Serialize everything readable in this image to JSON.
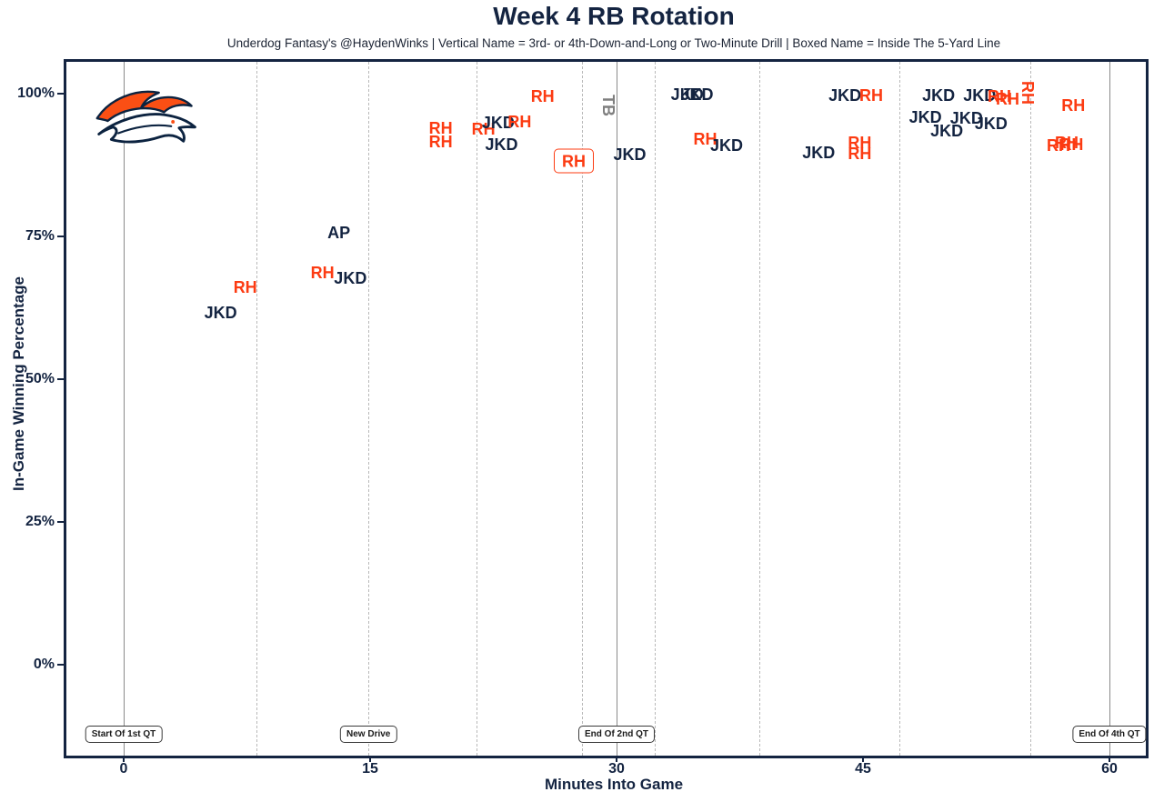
{
  "title": "Week 4 RB Rotation",
  "subtitle": "Underdog Fantasy's @HaydenWinks | Vertical Name = 3rd- or 4th-Down-and-Long or Two-Minute Drill | Boxed Name = Inside The 5-Yard Line",
  "colors": {
    "navy": "#142441",
    "orange": "#fc3b12",
    "gray": "#7f7f7f",
    "dashed_gridline": "#b9b9b9",
    "quarter_line": "#8a8a8a"
  },
  "logo": "denver-broncos",
  "chart_data": {
    "type": "scatter",
    "title": "Week 4 RB Rotation",
    "xlabel": "Minutes Into Game",
    "ylabel": "In-Game Winning Percentage",
    "xlim": [
      -3.5,
      62.4
    ],
    "ylim": [
      -15.9,
      105.6
    ],
    "grid": "vertical dashed lines at each new drive; solid vertical lines at quarter boundaries",
    "legend_position": "none",
    "x_ticks": [
      {
        "value": 0,
        "label": "0"
      },
      {
        "value": 15,
        "label": "15"
      },
      {
        "value": 30,
        "label": "30"
      },
      {
        "value": 45,
        "label": "45"
      },
      {
        "value": 60,
        "label": "60"
      }
    ],
    "y_ticks": [
      {
        "value": 0,
        "label": "0%"
      },
      {
        "value": 25,
        "label": "25%"
      },
      {
        "value": 50,
        "label": "50%"
      },
      {
        "value": 75,
        "label": "75%"
      },
      {
        "value": 100,
        "label": "100%"
      }
    ],
    "quarter_lines_min": [
      0,
      30,
      60
    ],
    "drive_lines_min": [
      8.1,
      14.9,
      21.5,
      27.9,
      32.3,
      38.7,
      47.2,
      55.2
    ],
    "annotations": [
      {
        "min": 0,
        "label": "Start Of 1st QT"
      },
      {
        "min": 14.9,
        "label": "New Drive"
      },
      {
        "min": 30,
        "label": "End Of 2nd QT"
      },
      {
        "min": 60,
        "label": "End Of 4th QT"
      }
    ],
    "player_colors": {
      "RH": "orange",
      "JKD": "navy",
      "AP": "navy",
      "TB": "gray"
    },
    "points": [
      {
        "player": "JKD",
        "min": 5.9,
        "win_pct": 61.6
      },
      {
        "player": "RH",
        "min": 7.4,
        "win_pct": 66.1
      },
      {
        "player": "RH",
        "min": 12.1,
        "win_pct": 68.6
      },
      {
        "player": "AP",
        "min": 13.1,
        "win_pct": 75.6
      },
      {
        "player": "JKD",
        "min": 13.8,
        "win_pct": 67.7
      },
      {
        "player": "RH",
        "min": 19.3,
        "win_pct": 94.0
      },
      {
        "player": "RH",
        "min": 19.3,
        "win_pct": 91.5
      },
      {
        "player": "RH",
        "min": 21.9,
        "win_pct": 93.8
      },
      {
        "player": "JKD",
        "min": 22.8,
        "win_pct": 94.9
      },
      {
        "player": "RH",
        "min": 24.1,
        "win_pct": 95.0
      },
      {
        "player": "JKD",
        "min": 23.0,
        "win_pct": 91.1
      },
      {
        "player": "RH",
        "min": 25.5,
        "win_pct": 99.5
      },
      {
        "player": "RH",
        "min": 27.4,
        "win_pct": 88.2,
        "boxed": true
      },
      {
        "player": "TB",
        "min": 29.5,
        "win_pct": 98.0,
        "vertical": true
      },
      {
        "player": "JKD",
        "min": 30.8,
        "win_pct": 89.3
      },
      {
        "player": "JKD",
        "min": 34.3,
        "win_pct": 99.8
      },
      {
        "player": "JKD",
        "min": 34.9,
        "win_pct": 99.8
      },
      {
        "player": "RH",
        "min": 35.4,
        "win_pct": 92.0
      },
      {
        "player": "JKD",
        "min": 36.7,
        "win_pct": 90.9
      },
      {
        "player": "JKD",
        "min": 42.3,
        "win_pct": 89.6
      },
      {
        "player": "JKD",
        "min": 43.9,
        "win_pct": 99.7
      },
      {
        "player": "RH",
        "min": 45.5,
        "win_pct": 99.7
      },
      {
        "player": "RH",
        "min": 44.8,
        "win_pct": 91.4
      },
      {
        "player": "RH",
        "min": 44.8,
        "win_pct": 89.5
      },
      {
        "player": "JKD",
        "min": 49.6,
        "win_pct": 99.7
      },
      {
        "player": "JKD",
        "min": 52.1,
        "win_pct": 99.7
      },
      {
        "player": "RH",
        "min": 53.3,
        "win_pct": 99.5
      },
      {
        "player": "RH",
        "min": 53.8,
        "win_pct": 99.0
      },
      {
        "player": "RH",
        "min": 55.0,
        "win_pct": 100.2,
        "vertical": true
      },
      {
        "player": "JKD",
        "min": 48.8,
        "win_pct": 95.9
      },
      {
        "player": "JKD",
        "min": 51.3,
        "win_pct": 95.7
      },
      {
        "player": "JKD",
        "min": 52.8,
        "win_pct": 94.7
      },
      {
        "player": "JKD",
        "min": 50.1,
        "win_pct": 93.5
      },
      {
        "player": "RH",
        "min": 57.8,
        "win_pct": 97.9
      },
      {
        "player": "RH",
        "min": 56.9,
        "win_pct": 90.9
      },
      {
        "player": "RH",
        "min": 57.4,
        "win_pct": 91.4
      },
      {
        "player": "RH",
        "min": 57.7,
        "win_pct": 91.1
      }
    ]
  }
}
